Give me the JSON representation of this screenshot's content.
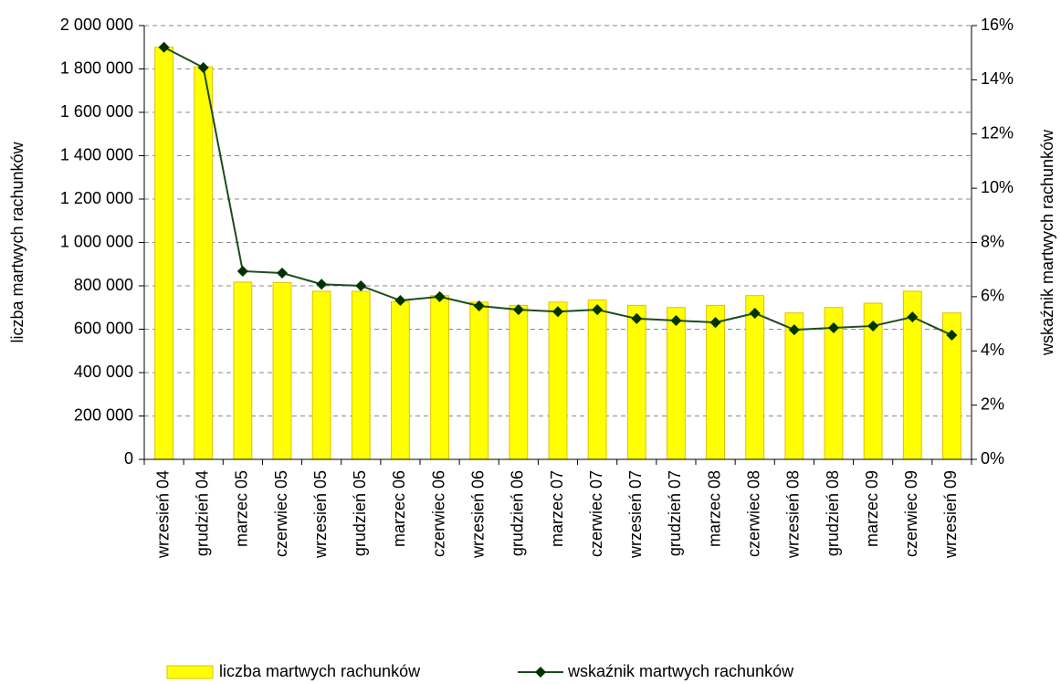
{
  "chart_data": {
    "type": "bar",
    "categories": [
      "wrzesień 04",
      "grudzień 04",
      "marzec 05",
      "czerwiec 05",
      "wrzesień 05",
      "grudzień 05",
      "marzec 06",
      "czerwiec 06",
      "wrzesień 06",
      "grudzień 06",
      "marzec 07",
      "czerwiec 07",
      "wrzesień 07",
      "grudzień 07",
      "marzec 08",
      "czerwiec 08",
      "wrzesień 08",
      "grudzień 08",
      "marzec 09",
      "czerwiec 09",
      "wrzesień 09"
    ],
    "ylabel": "liczba martwych rachunków",
    "y2label": "wskaźnik martwych rachunków",
    "series": [
      {
        "name": "liczba martwych rachunków",
        "type": "bar",
        "color": "#ffff00",
        "axis": "y",
        "values": [
          1900000,
          1810000,
          817000,
          815000,
          775000,
          775000,
          728000,
          755000,
          725000,
          710000,
          725000,
          735000,
          710000,
          700000,
          710000,
          755000,
          675000,
          700000,
          720000,
          775000,
          675000
        ]
      },
      {
        "name": "wskaźnik martwych rachunków",
        "type": "line",
        "color": "#1a4d1a",
        "axis": "y2",
        "values": [
          15.2,
          14.45,
          6.94,
          6.87,
          6.46,
          6.4,
          5.86,
          6.0,
          5.66,
          5.52,
          5.45,
          5.52,
          5.19,
          5.12,
          5.05,
          5.39,
          4.78,
          4.85,
          4.92,
          5.25,
          4.58
        ]
      }
    ],
    "ylim": [
      0,
      2000000
    ],
    "yticks": [
      0,
      {
        "value": 200000,
        "label": "200 000"
      },
      {
        "value": 400000,
        "label": "400 000"
      },
      {
        "value": 600000,
        "label": "600 000"
      },
      {
        "value": 800000,
        "label": "800 000"
      },
      {
        "value": 1000000,
        "label": "1 000 000"
      },
      {
        "value": 1200000,
        "label": "1 200 000"
      },
      {
        "value": 1400000,
        "label": "1 400 000"
      },
      {
        "value": 1600000,
        "label": "1 600 000"
      },
      {
        "value": 1800000,
        "label": "1 800 000"
      },
      {
        "value": 2000000,
        "label": "2 000 000"
      }
    ],
    "y2lim": [
      0,
      16
    ],
    "y2ticks": [
      {
        "value": 0,
        "label": "0%"
      },
      {
        "value": 2,
        "label": "2%"
      },
      {
        "value": 4,
        "label": "4%"
      },
      {
        "value": 6,
        "label": "6%"
      },
      {
        "value": 8,
        "label": "8%"
      },
      {
        "value": 10,
        "label": "10%"
      },
      {
        "value": 12,
        "label": "12%"
      },
      {
        "value": 14,
        "label": "14%"
      },
      {
        "value": 16,
        "label": "16%"
      }
    ],
    "grid": true,
    "legend": "bottom"
  }
}
